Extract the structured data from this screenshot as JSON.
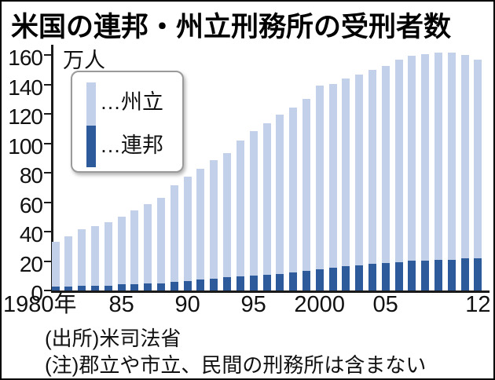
{
  "title": "米国の連邦・州立刑務所の受刑者数",
  "y_axis": {
    "unit": "万人",
    "ticks": [
      0,
      20,
      40,
      60,
      80,
      100,
      120,
      140,
      160
    ],
    "max": 160
  },
  "legend": {
    "state_label": "…州立",
    "federal_label": "…連邦"
  },
  "footer": {
    "source": "(出所)米司法省",
    "note": "(注)郡立や市立、民間の刑務所は含まない"
  },
  "colors": {
    "state": "#c3d0e9",
    "federal": "#2d5a9b",
    "axis": "#1a1a1a"
  },
  "chart_data": {
    "type": "bar",
    "stacked": true,
    "title": "米国の連邦・州立刑務所の受刑者数",
    "ylabel": "万人",
    "ylim": [
      0,
      160
    ],
    "grid": false,
    "legend_position": "upper-left",
    "x": [
      1980,
      1981,
      1982,
      1983,
      1984,
      1985,
      1986,
      1987,
      1988,
      1989,
      1990,
      1991,
      1992,
      1993,
      1994,
      1995,
      1996,
      1997,
      1998,
      1999,
      2000,
      2001,
      2002,
      2003,
      2004,
      2005,
      2006,
      2007,
      2008,
      2009,
      2010,
      2011,
      2012
    ],
    "x_tick_labels": [
      {
        "year": 1980,
        "label": "1980年",
        "align": "left"
      },
      {
        "year": 1985,
        "label": "85"
      },
      {
        "year": 1990,
        "label": "90"
      },
      {
        "year": 1995,
        "label": "95"
      },
      {
        "year": 2000,
        "label": "2000"
      },
      {
        "year": 2005,
        "label": "05"
      },
      {
        "year": 2012,
        "label": "12"
      }
    ],
    "series": [
      {
        "name": "連邦",
        "color_key": "federal",
        "values": [
          2.4,
          2.8,
          3.0,
          3.2,
          3.4,
          4.0,
          4.4,
          4.8,
          5.0,
          5.9,
          6.6,
          7.2,
          8.0,
          9.0,
          9.5,
          10.0,
          10.6,
          11.3,
          12.3,
          13.5,
          14.5,
          15.7,
          16.4,
          17.3,
          18.0,
          18.8,
          19.3,
          20.0,
          20.1,
          20.8,
          21.0,
          21.6,
          21.8
        ]
      },
      {
        "name": "州立",
        "color_key": "state",
        "values": [
          30.6,
          34.2,
          38.4,
          40.5,
          42.8,
          46.3,
          50.1,
          53.7,
          57.8,
          65.4,
          70.7,
          75.4,
          80.3,
          84.2,
          92.2,
          98.5,
          103.2,
          108.2,
          112.2,
          116.9,
          124.6,
          124.7,
          127.7,
          129.6,
          131.7,
          134.0,
          137.6,
          139.7,
          140.7,
          140.7,
          140.4,
          138.3,
          135.2
        ]
      }
    ]
  }
}
